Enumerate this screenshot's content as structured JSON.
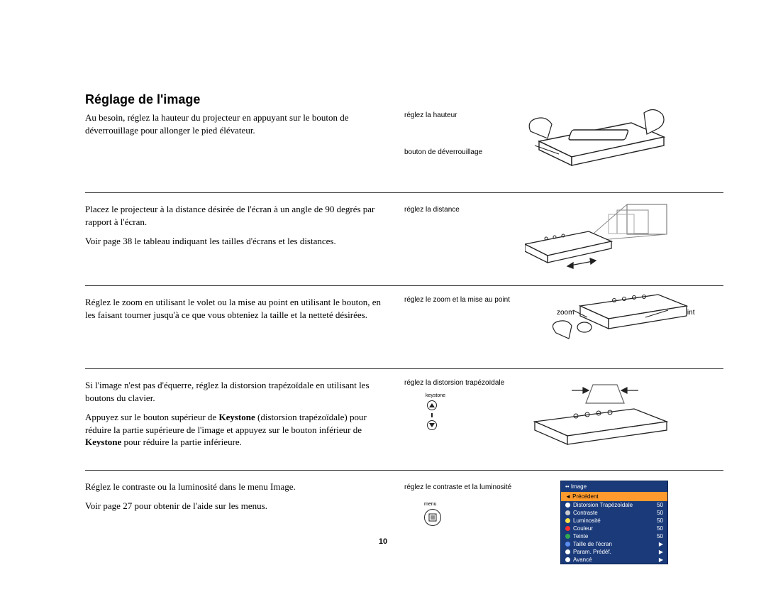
{
  "title": "Réglage de l'image",
  "section1": {
    "p1": "Au besoin, réglez la hauteur du projecteur en appuyant sur le bouton de déverrouillage pour allonger le pied élévateur.",
    "cap_top": "réglez la hauteur",
    "cap_bottom": "bouton de déverrouillage"
  },
  "section2": {
    "p1": "Placez le projecteur à la distance désirée de l'écran à un angle de 90 degrés par rapport à l'écran.",
    "p2": "Voir page 38 le tableau indiquant les tailles d'écrans et les distances.",
    "cap": "réglez la distance"
  },
  "section3": {
    "p1": "Réglez le zoom en utilisant le volet ou la mise au point en utilisant le bouton, en les faisant tourner jusqu'à ce que vous obteniez la taille et la netteté désirées.",
    "cap": "réglez le zoom et la mise au point",
    "label_zoom": "zoom",
    "label_focus": "mise au point"
  },
  "section4": {
    "p1": "Si l'image n'est pas d'équerre, réglez la distorsion trapézoïdale en utilisant les boutons du clavier.",
    "p2_a": "Appuyez sur le bouton supérieur de ",
    "p2_b": "Keystone",
    "p2_c": " (distorsion trapézoïdale) pour réduire la partie supérieure de l'image et appuyez sur le bouton inférieur de ",
    "p2_d": "Keystone",
    "p2_e": " pour réduire la partie inférieure.",
    "cap": "réglez la distorsion trapézoïdale",
    "keystone_label": "keystone"
  },
  "section5": {
    "p1": "Réglez le contraste ou la luminosité dans le menu Image.",
    "p2": "Voir page 27 pour obtenir de l'aide sur les menus.",
    "cap": "réglez le contraste et la luminosité",
    "menu_label": "menu",
    "osd": {
      "header": "Image",
      "highlight": "Précédent",
      "rows": [
        {
          "dot": "#ffffff",
          "label": "Distorsion Trapézoïdale",
          "val": "50"
        },
        {
          "dot": "#cccccc",
          "label": "Contraste",
          "val": "50"
        },
        {
          "dot": "#ffe14a",
          "label": "Luminosité",
          "val": "50"
        },
        {
          "dot": "#ff3030",
          "label": "Couleur",
          "val": "50"
        },
        {
          "dot": "#32a852",
          "label": "Teinte",
          "val": "50"
        },
        {
          "dot": "#5a8dee",
          "label": "Taille de l'écran",
          "val": "▶"
        },
        {
          "dot": "#ffffff",
          "label": "Param. Prédéf.",
          "val": "▶"
        },
        {
          "dot": "#ffffff",
          "label": "Avancé",
          "val": "▶"
        }
      ]
    }
  },
  "page_number": "10"
}
